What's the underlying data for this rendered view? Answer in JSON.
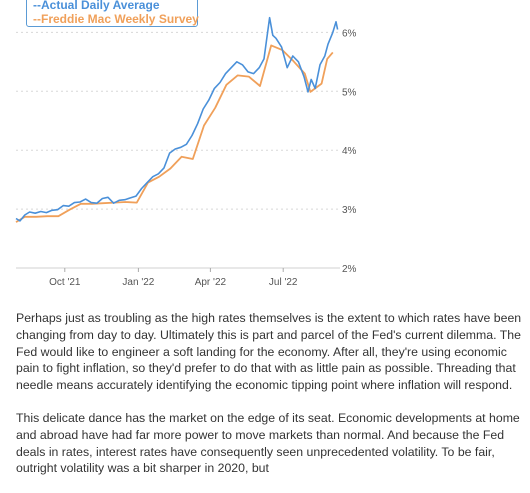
{
  "chart_data": {
    "type": "line",
    "series": [
      {
        "name": "--Actual Daily Average",
        "color": "#4a90d9",
        "points": [
          [
            "2021-08-01",
            2.84
          ],
          [
            "2021-08-06",
            2.8
          ],
          [
            "2021-08-12",
            2.9
          ],
          [
            "2021-08-18",
            2.95
          ],
          [
            "2021-08-25",
            2.93
          ],
          [
            "2021-09-01",
            2.96
          ],
          [
            "2021-09-08",
            2.94
          ],
          [
            "2021-09-15",
            2.98
          ],
          [
            "2021-09-22",
            2.99
          ],
          [
            "2021-09-29",
            3.06
          ],
          [
            "2021-10-06",
            3.05
          ],
          [
            "2021-10-13",
            3.11
          ],
          [
            "2021-10-20",
            3.12
          ],
          [
            "2021-10-27",
            3.17
          ],
          [
            "2021-11-03",
            3.11
          ],
          [
            "2021-11-10",
            3.1
          ],
          [
            "2021-11-17",
            3.18
          ],
          [
            "2021-11-24",
            3.2
          ],
          [
            "2021-12-01",
            3.1
          ],
          [
            "2021-12-08",
            3.15
          ],
          [
            "2021-12-15",
            3.16
          ],
          [
            "2021-12-22",
            3.19
          ],
          [
            "2021-12-29",
            3.22
          ],
          [
            "2022-01-05",
            3.35
          ],
          [
            "2022-01-12",
            3.45
          ],
          [
            "2022-01-19",
            3.55
          ],
          [
            "2022-01-26",
            3.6
          ],
          [
            "2022-02-02",
            3.7
          ],
          [
            "2022-02-09",
            3.95
          ],
          [
            "2022-02-16",
            4.02
          ],
          [
            "2022-02-23",
            4.05
          ],
          [
            "2022-03-02",
            4.1
          ],
          [
            "2022-03-09",
            4.25
          ],
          [
            "2022-03-16",
            4.45
          ],
          [
            "2022-03-23",
            4.7
          ],
          [
            "2022-03-30",
            4.85
          ],
          [
            "2022-04-06",
            5.05
          ],
          [
            "2022-04-13",
            5.15
          ],
          [
            "2022-04-20",
            5.3
          ],
          [
            "2022-04-27",
            5.4
          ],
          [
            "2022-05-04",
            5.5
          ],
          [
            "2022-05-11",
            5.45
          ],
          [
            "2022-05-18",
            5.33
          ],
          [
            "2022-05-25",
            5.3
          ],
          [
            "2022-06-01",
            5.4
          ],
          [
            "2022-06-07",
            5.55
          ],
          [
            "2022-06-10",
            5.85
          ],
          [
            "2022-06-14",
            6.25
          ],
          [
            "2022-06-18",
            5.95
          ],
          [
            "2022-06-22",
            5.9
          ],
          [
            "2022-06-29",
            5.75
          ],
          [
            "2022-07-06",
            5.4
          ],
          [
            "2022-07-13",
            5.6
          ],
          [
            "2022-07-20",
            5.5
          ],
          [
            "2022-07-27",
            5.25
          ],
          [
            "2022-08-01",
            4.99
          ],
          [
            "2022-08-05",
            5.2
          ],
          [
            "2022-08-10",
            5.05
          ],
          [
            "2022-08-16",
            5.45
          ],
          [
            "2022-08-22",
            5.6
          ],
          [
            "2022-08-26",
            5.8
          ],
          [
            "2022-09-01",
            6.0
          ],
          [
            "2022-09-05",
            6.18
          ],
          [
            "2022-09-07",
            6.05
          ]
        ]
      },
      {
        "name": "--Freddie Mac Weekly Survey",
        "color": "#f0a05a",
        "points": [
          [
            "2021-08-01",
            2.78
          ],
          [
            "2021-08-12",
            2.87
          ],
          [
            "2021-08-26",
            2.87
          ],
          [
            "2021-09-09",
            2.88
          ],
          [
            "2021-09-23",
            2.88
          ],
          [
            "2021-10-07",
            2.99
          ],
          [
            "2021-10-21",
            3.09
          ],
          [
            "2021-11-04",
            3.09
          ],
          [
            "2021-11-18",
            3.1
          ],
          [
            "2021-12-02",
            3.11
          ],
          [
            "2021-12-16",
            3.12
          ],
          [
            "2021-12-30",
            3.11
          ],
          [
            "2022-01-13",
            3.45
          ],
          [
            "2022-01-27",
            3.55
          ],
          [
            "2022-02-10",
            3.69
          ],
          [
            "2022-02-24",
            3.89
          ],
          [
            "2022-03-10",
            3.85
          ],
          [
            "2022-03-24",
            4.42
          ],
          [
            "2022-04-07",
            4.72
          ],
          [
            "2022-04-21",
            5.11
          ],
          [
            "2022-05-05",
            5.27
          ],
          [
            "2022-05-19",
            5.25
          ],
          [
            "2022-06-02",
            5.09
          ],
          [
            "2022-06-16",
            5.78
          ],
          [
            "2022-06-30",
            5.7
          ],
          [
            "2022-07-14",
            5.51
          ],
          [
            "2022-07-28",
            5.3
          ],
          [
            "2022-08-04",
            4.99
          ],
          [
            "2022-08-18",
            5.13
          ],
          [
            "2022-08-25",
            5.55
          ],
          [
            "2022-09-01",
            5.66
          ]
        ]
      }
    ],
    "x_ticks": [
      {
        "date": "2021-10-01",
        "label": "Oct '21"
      },
      {
        "date": "2022-01-01",
        "label": "Jan '22"
      },
      {
        "date": "2022-04-01",
        "label": "Apr '22"
      },
      {
        "date": "2022-07-01",
        "label": "Jul '22"
      }
    ],
    "y_ticks": [
      {
        "value": 2,
        "label": "2%"
      },
      {
        "value": 3,
        "label": "3%"
      },
      {
        "value": 4,
        "label": "4%"
      },
      {
        "value": 5,
        "label": "5%"
      },
      {
        "value": 6,
        "label": "6%"
      }
    ],
    "xlim": [
      "2021-08-01",
      "2022-09-10"
    ],
    "ylim": [
      2,
      6.55
    ],
    "grid": "horizontal-dashed",
    "legend_position": "top-left"
  },
  "article": {
    "paragraphs": [
      "Perhaps just as troubling as the high rates themselves is the extent to which rates have been changing from day to day.  Ultimately this is part and parcel of the Fed's current dilemma.  The Fed would like to engineer a soft landing for the economy.  After all, they're using economic pain to fight inflation, so they'd prefer to do that with as little pain as possible.  Threading that needle means accurately identifying the economic tipping point where inflation will respond.",
      "This delicate dance has the market on the edge of its seat.  Economic developments at home and abroad have had far more power to move markets than normal.  And because the Fed deals in rates, interest rates have consequently seen unprecedented volatility.  To be fair, outright volatility was a bit sharper in 2020, but"
    ]
  }
}
